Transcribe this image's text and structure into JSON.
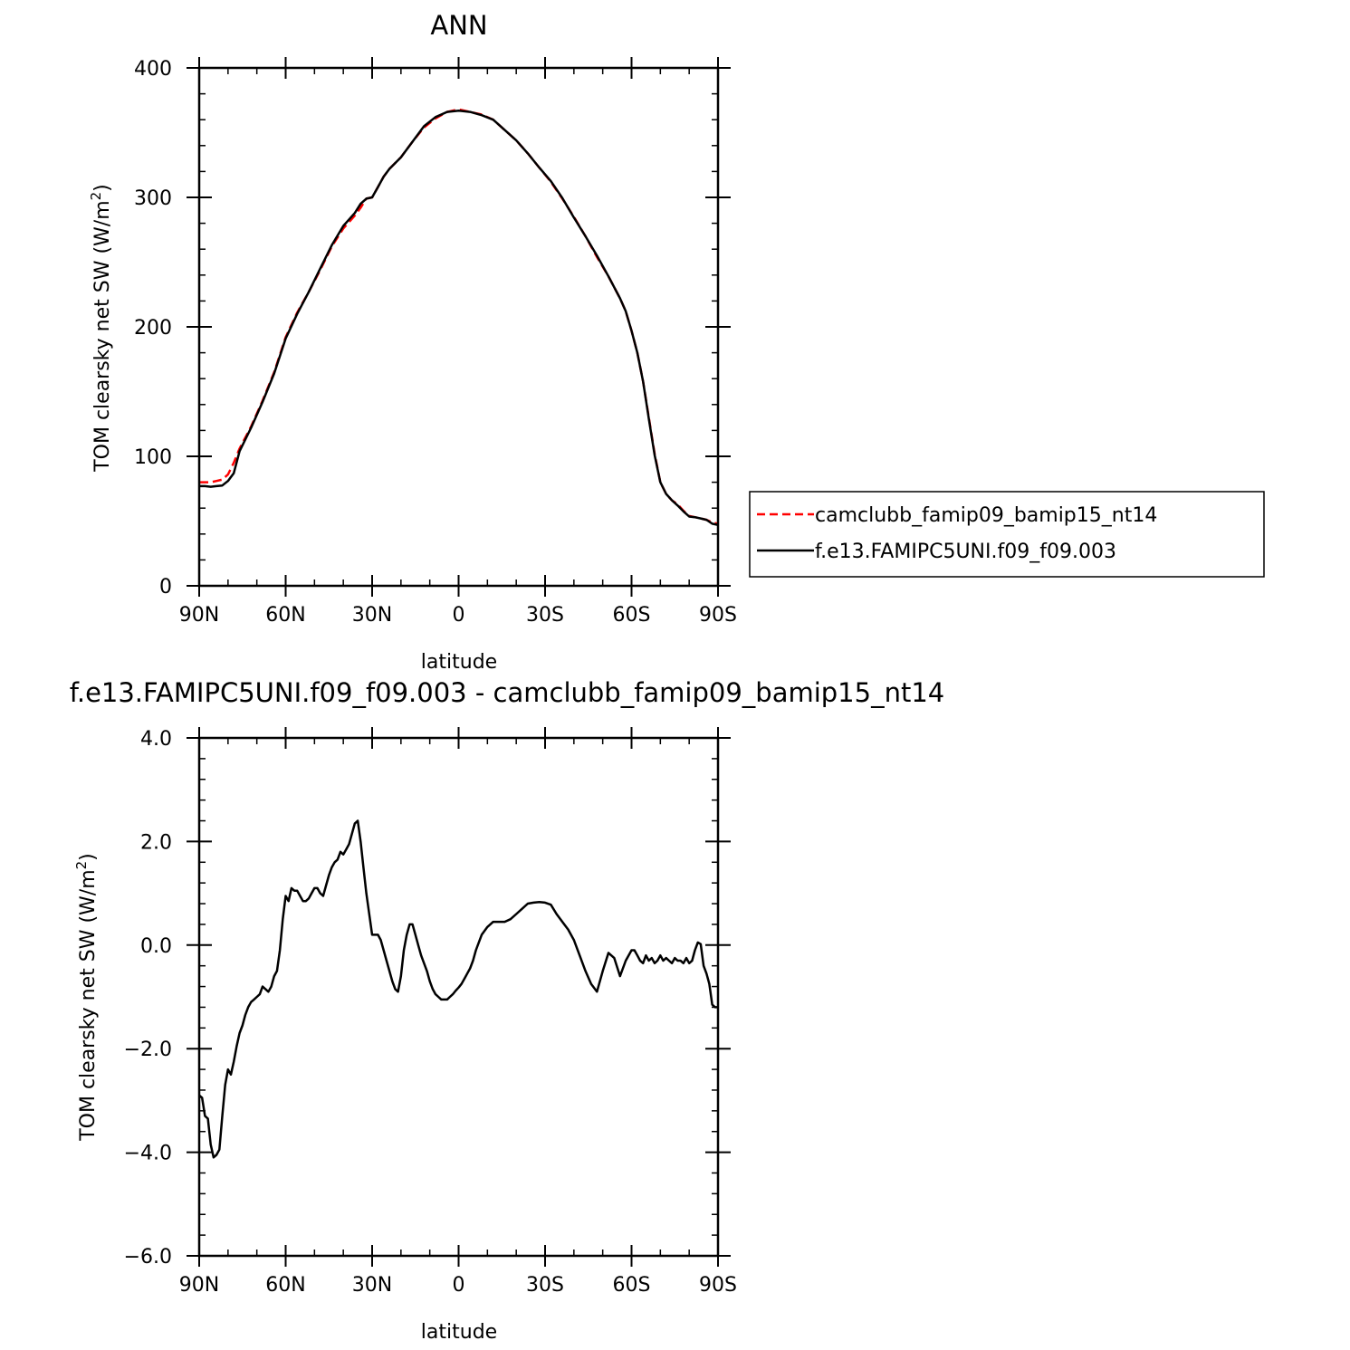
{
  "chart_data": [
    {
      "type": "line",
      "title": "ANN",
      "xlabel": "latitude",
      "ylabel": "TOM clearsky net SW (W/m",
      "ylabel_sup": "2",
      "ylabel_close": ")",
      "xlim": [
        90,
        -90
      ],
      "ylim": [
        0,
        400
      ],
      "xticks": [
        90,
        60,
        30,
        0,
        -30,
        -60,
        -90
      ],
      "xtick_labels": [
        "90N",
        "60N",
        "30N",
        "0",
        "30S",
        "60S",
        "90S"
      ],
      "yticks": [
        0,
        100,
        200,
        300,
        400
      ],
      "ytick_labels": [
        "0",
        "100",
        "200",
        "300",
        "400"
      ],
      "grid": false,
      "legend_position": "right",
      "series": [
        {
          "name": "camclubb_famip09_bamip15_nt14",
          "color": "#ff0000",
          "dash": "dashed",
          "x": [
            90,
            88,
            86,
            84,
            82,
            80,
            78,
            76,
            72,
            68,
            64,
            60,
            56,
            52,
            48,
            44,
            40,
            36,
            34,
            32,
            30,
            28,
            26,
            24,
            20,
            16,
            12,
            8,
            4,
            0,
            -4,
            -8,
            -12,
            -16,
            -20,
            -24,
            -28,
            -32,
            -36,
            -40,
            -44,
            -48,
            -52,
            -56,
            -58,
            -60,
            -62,
            -64,
            -66,
            -68,
            -70,
            -72,
            -74,
            -76,
            -78,
            -80,
            -82,
            -84,
            -86,
            -88,
            -90
          ],
          "y": [
            80,
            80,
            80,
            81,
            82,
            86,
            95,
            106,
            123,
            143,
            165,
            192,
            211,
            227,
            244,
            262,
            276,
            286,
            292,
            299,
            300,
            308,
            316,
            322,
            331,
            343,
            354,
            361,
            366,
            368,
            366,
            364,
            360,
            352,
            344,
            334,
            323,
            312,
            299,
            285,
            270,
            254,
            239,
            222,
            212,
            197,
            180,
            158,
            130,
            102,
            80,
            71,
            66,
            63,
            58,
            54,
            53,
            52,
            51,
            49,
            48
          ]
        },
        {
          "name": "f.e13.FAMIPC5UNI.f09_f09.003",
          "color": "#000000",
          "dash": "solid",
          "x": [
            90,
            88,
            86,
            84,
            82,
            80,
            78,
            76,
            72,
            68,
            64,
            60,
            56,
            52,
            48,
            44,
            40,
            36,
            34,
            32,
            30,
            28,
            26,
            24,
            20,
            16,
            12,
            8,
            4,
            0,
            -4,
            -8,
            -12,
            -16,
            -20,
            -24,
            -28,
            -32,
            -36,
            -40,
            -44,
            -48,
            -52,
            -56,
            -58,
            -60,
            -62,
            -64,
            -66,
            -68,
            -70,
            -72,
            -74,
            -76,
            -78,
            -80,
            -82,
            -84,
            -86,
            -88,
            -90
          ],
          "y": [
            77,
            77,
            76.5,
            77,
            77.5,
            81,
            87,
            104,
            122,
            142,
            164,
            191,
            210,
            227,
            245,
            263,
            278,
            288,
            295,
            299,
            300,
            308,
            316,
            322,
            331,
            343,
            355,
            362,
            366,
            367,
            366,
            363.5,
            360,
            352,
            344,
            334,
            323,
            312.5,
            299.5,
            284.5,
            270,
            255,
            239,
            222,
            212,
            197,
            180,
            158,
            129,
            101,
            80,
            71,
            66,
            62,
            57.5,
            53.5,
            53,
            52,
            51,
            48,
            47
          ]
        }
      ]
    },
    {
      "type": "line",
      "title": "f.e13.FAMIPC5UNI.f09_f09.003 - camclubb_famip09_bamip15_nt14",
      "xlabel": "latitude",
      "ylabel": "TOM clearsky net SW (W/m",
      "ylabel_sup": "2",
      "ylabel_close": ")",
      "xlim": [
        90,
        -90
      ],
      "ylim": [
        -6,
        4
      ],
      "xticks": [
        90,
        60,
        30,
        0,
        -30,
        -60,
        -90
      ],
      "xtick_labels": [
        "90N",
        "60N",
        "30N",
        "0",
        "30S",
        "60S",
        "90S"
      ],
      "yticks": [
        -6,
        -4,
        -2,
        0,
        2,
        4
      ],
      "ytick_labels": [
        "−6.0",
        "−4.0",
        "−2.0",
        "0.0",
        "2.0",
        "4.0"
      ],
      "grid": false,
      "series": [
        {
          "name": "",
          "color": "#000000",
          "dash": "solid",
          "x": [
            90,
            89,
            88,
            87,
            86,
            85,
            84,
            83,
            82,
            81,
            80,
            79,
            78,
            77,
            76,
            75,
            74,
            73,
            72,
            71,
            70,
            69,
            68,
            67,
            66,
            65,
            64,
            63,
            62,
            61,
            60,
            59,
            58,
            57,
            56,
            55,
            54,
            53,
            52,
            51,
            50,
            49,
            48,
            47,
            46,
            45,
            44,
            43,
            42,
            41,
            40,
            39,
            38,
            37,
            36,
            35,
            34,
            33,
            32,
            31,
            30,
            29,
            28,
            27,
            26,
            25,
            24,
            23,
            22,
            21,
            20,
            19,
            18,
            17,
            16,
            15,
            14,
            13,
            12,
            11,
            10,
            9,
            8,
            7,
            6,
            5,
            4,
            3,
            2,
            1,
            0,
            -1,
            -2,
            -3,
            -4,
            -5,
            -6,
            -7,
            -8,
            -10,
            -12,
            -14,
            -16,
            -18,
            -20,
            -22,
            -24,
            -26,
            -28,
            -30,
            -32,
            -34,
            -36,
            -38,
            -40,
            -42,
            -44,
            -46,
            -48,
            -50,
            -52,
            -54,
            -56,
            -58,
            -60,
            -61,
            -62,
            -63,
            -64,
            -65,
            -66,
            -67,
            -68,
            -69,
            -70,
            -71,
            -72,
            -73,
            -74,
            -75,
            -76,
            -77,
            -78,
            -79,
            -80,
            -81,
            -82,
            -83,
            -84,
            -85,
            -86,
            -87,
            -88,
            -89,
            -90
          ],
          "y": [
            -2.9,
            -2.95,
            -3.3,
            -3.35,
            -3.85,
            -4.1,
            -4.05,
            -3.95,
            -3.3,
            -2.7,
            -2.4,
            -2.5,
            -2.25,
            -1.95,
            -1.7,
            -1.55,
            -1.35,
            -1.2,
            -1.1,
            -1.05,
            -1.0,
            -0.95,
            -0.8,
            -0.85,
            -0.9,
            -0.8,
            -0.6,
            -0.5,
            -0.1,
            0.5,
            0.95,
            0.85,
            1.1,
            1.05,
            1.05,
            0.95,
            0.85,
            0.85,
            0.9,
            1.0,
            1.1,
            1.1,
            1.0,
            0.95,
            1.15,
            1.35,
            1.5,
            1.6,
            1.65,
            1.8,
            1.75,
            1.85,
            1.95,
            2.15,
            2.35,
            2.4,
            2.0,
            1.5,
            1.0,
            0.6,
            0.2,
            0.2,
            0.2,
            0.1,
            -0.1,
            -0.3,
            -0.5,
            -0.7,
            -0.85,
            -0.9,
            -0.6,
            -0.1,
            0.2,
            0.4,
            0.4,
            0.2,
            0.0,
            -0.2,
            -0.35,
            -0.5,
            -0.7,
            -0.85,
            -0.95,
            -1.0,
            -1.05,
            -1.05,
            -1.05,
            -1.0,
            -0.95,
            -0.88,
            -0.82,
            -0.75,
            -0.65,
            -0.55,
            -0.45,
            -0.3,
            -0.1,
            0.05,
            0.2,
            0.35,
            0.45,
            0.45,
            0.45,
            0.5,
            0.6,
            0.7,
            0.8,
            0.82,
            0.83,
            0.82,
            0.78,
            0.6,
            0.45,
            0.3,
            0.1,
            -0.2,
            -0.5,
            -0.75,
            -0.9,
            -0.5,
            -0.15,
            -0.25,
            -0.6,
            -0.3,
            -0.1,
            -0.1,
            -0.2,
            -0.3,
            -0.35,
            -0.2,
            -0.3,
            -0.25,
            -0.35,
            -0.3,
            -0.2,
            -0.3,
            -0.25,
            -0.3,
            -0.35,
            -0.25,
            -0.3,
            -0.3,
            -0.35,
            -0.25,
            -0.35,
            -0.3,
            -0.1,
            0.05,
            0.02,
            -0.4,
            -0.55,
            -0.75,
            -1.15,
            -1.2,
            -1.2
          ]
        }
      ]
    }
  ],
  "legend": {
    "items": [
      {
        "label": "camclubb_famip09_bamip15_nt14",
        "color": "#ff0000",
        "dash": "dashed"
      },
      {
        "label": "f.e13.FAMIPC5UNI.f09_f09.003",
        "color": "#000000",
        "dash": "solid"
      }
    ]
  }
}
